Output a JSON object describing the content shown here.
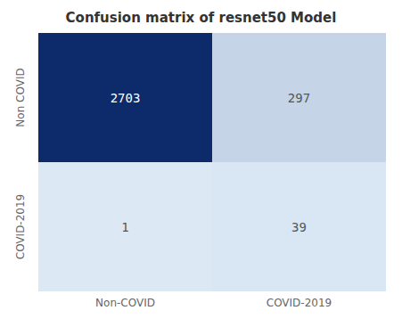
{
  "chart_data": {
    "type": "heatmap",
    "title": "Confusion matrix of resnet50 Model",
    "categories": [
      "Non-COVID",
      "COVID-2019"
    ],
    "y_categories": [
      "Non COVID",
      "COVID-2019"
    ],
    "values": [
      [
        2703,
        297
      ],
      [
        1,
        39
      ]
    ],
    "colors": [
      "#dce9f5",
      "#0d2b6b"
    ],
    "data_labels": true,
    "grid": false
  }
}
